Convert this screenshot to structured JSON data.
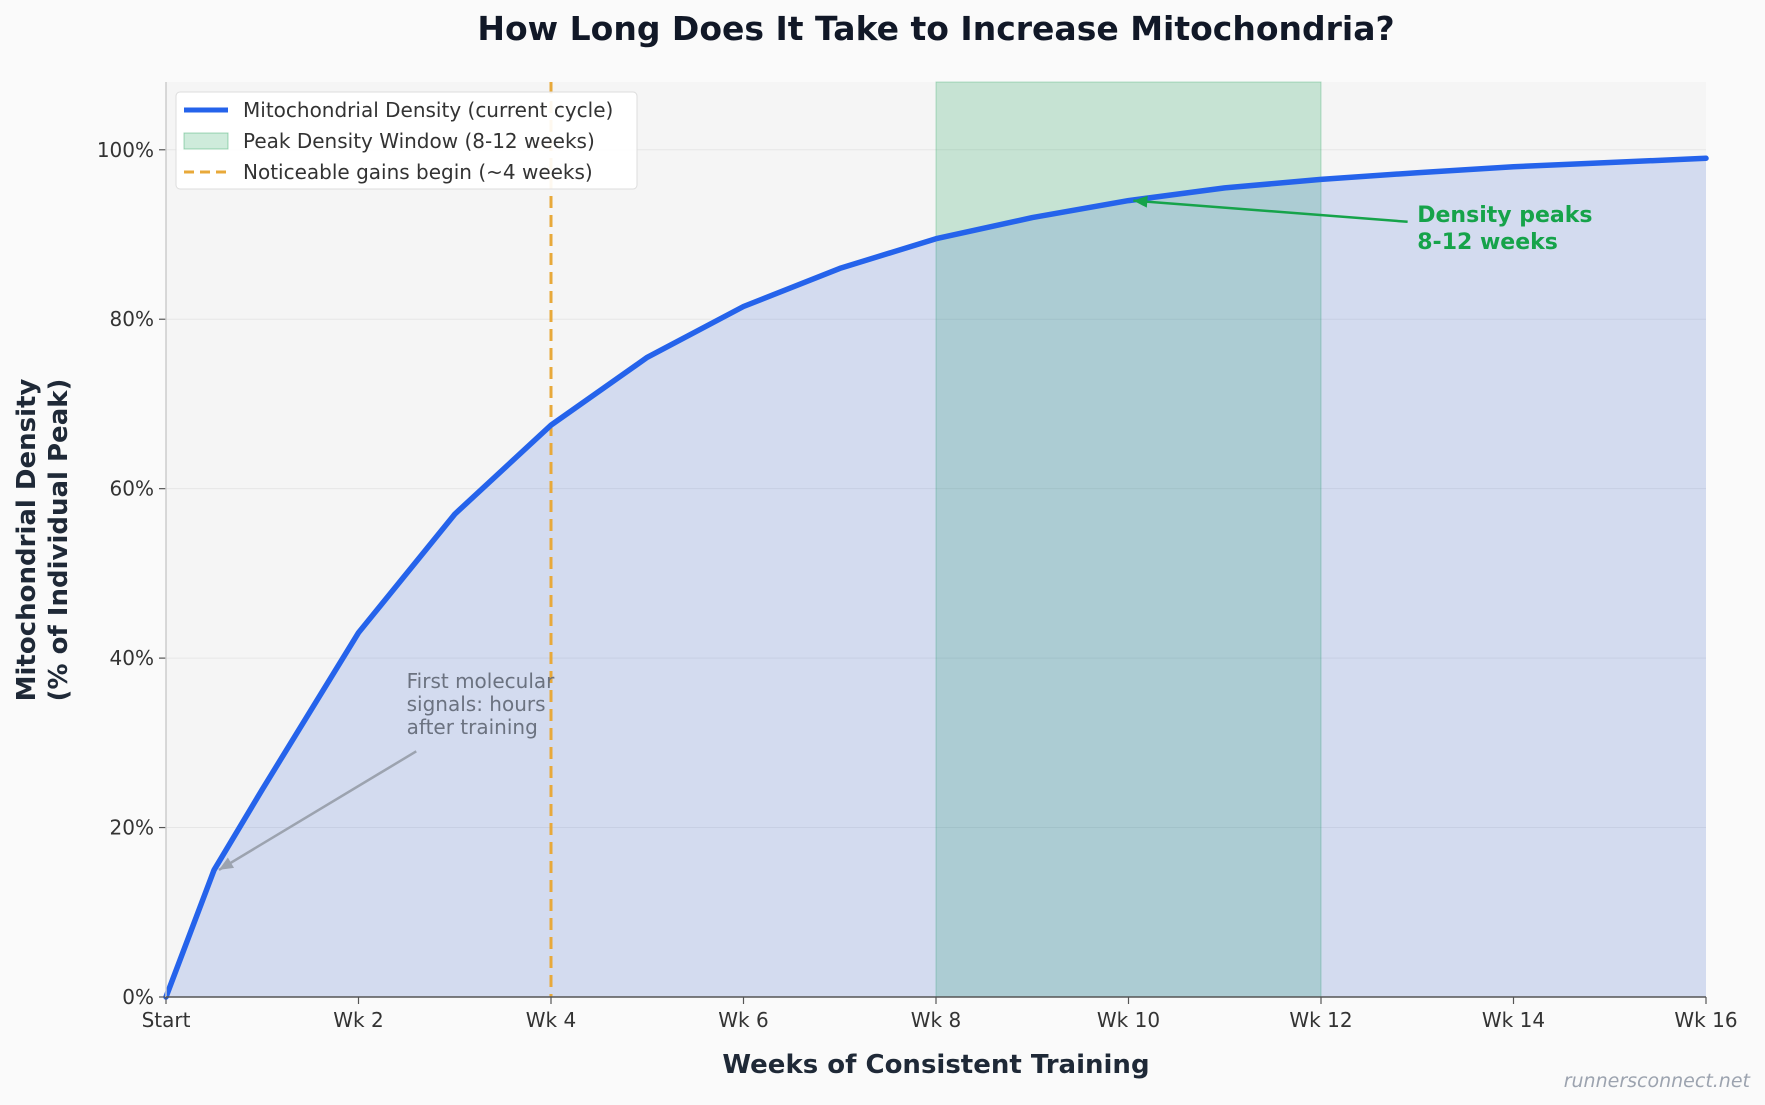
{
  "chart_data": {
    "type": "area",
    "title": "How Long Does It Take to Increase Mitochondria?",
    "xlabel": "Weeks of Consistent Training",
    "ylabel_lines": [
      "Mitochondrial Density",
      "(% of Individual Peak)"
    ],
    "x_ticks": [
      {
        "value": 0,
        "label": "Start"
      },
      {
        "value": 2,
        "label": "Wk 2"
      },
      {
        "value": 4,
        "label": "Wk 4"
      },
      {
        "value": 6,
        "label": "Wk 6"
      },
      {
        "value": 8,
        "label": "Wk 8"
      },
      {
        "value": 10,
        "label": "Wk 10"
      },
      {
        "value": 12,
        "label": "Wk 12"
      },
      {
        "value": 14,
        "label": "Wk 14"
      },
      {
        "value": 16,
        "label": "Wk 16"
      }
    ],
    "y_ticks": [
      {
        "value": 0,
        "label": "0%"
      },
      {
        "value": 20,
        "label": "20%"
      },
      {
        "value": 40,
        "label": "40%"
      },
      {
        "value": 60,
        "label": "60%"
      },
      {
        "value": 80,
        "label": "80%"
      },
      {
        "value": 100,
        "label": "100%"
      }
    ],
    "xlim": [
      0,
      16
    ],
    "ylim": [
      0,
      108
    ],
    "grid": "horizontal",
    "legend_position": "top-left",
    "series": [
      {
        "name": "Mitochondrial Density (current cycle)",
        "color": "#2563eb",
        "fill_color": "#c7d4f2",
        "x": [
          0,
          0.5,
          1,
          2,
          3,
          4,
          5,
          6,
          7,
          8,
          9,
          10,
          11,
          12,
          13,
          14,
          15,
          16
        ],
        "y": [
          0,
          15,
          24.5,
          43,
          57,
          67.5,
          75.5,
          81.5,
          86,
          89.5,
          92,
          94,
          95.5,
          96.5,
          97.3,
          98,
          98.5,
          99
        ]
      }
    ],
    "shaded_regions": [
      {
        "name": "Peak Density Window (8-12 weeks)",
        "x_start": 8,
        "x_end": 12,
        "color": "#22a35a"
      }
    ],
    "vertical_lines": [
      {
        "name": "Noticeable gains begin (~4 weeks)",
        "x": 4,
        "color": "#e8a93a"
      }
    ],
    "annotations": [
      {
        "lines": [
          "First molecular",
          "signals: hours",
          "after training"
        ],
        "text_x": 2.5,
        "text_y": 36.5,
        "arrow_from": [
          2.6,
          29
        ],
        "arrow_to": [
          0.55,
          15
        ],
        "color": "#9ca3af",
        "text_color": "#6b7280"
      },
      {
        "lines": [
          "Density peaks",
          "8-12 weeks"
        ],
        "text_x": 13,
        "text_y": 91.5,
        "arrow_from": [
          12.9,
          91.5
        ],
        "arrow_to": [
          10.05,
          94
        ],
        "color": "#16a34a",
        "text_color": "#16a34a"
      }
    ],
    "watermark": "runnersconnect.net"
  }
}
